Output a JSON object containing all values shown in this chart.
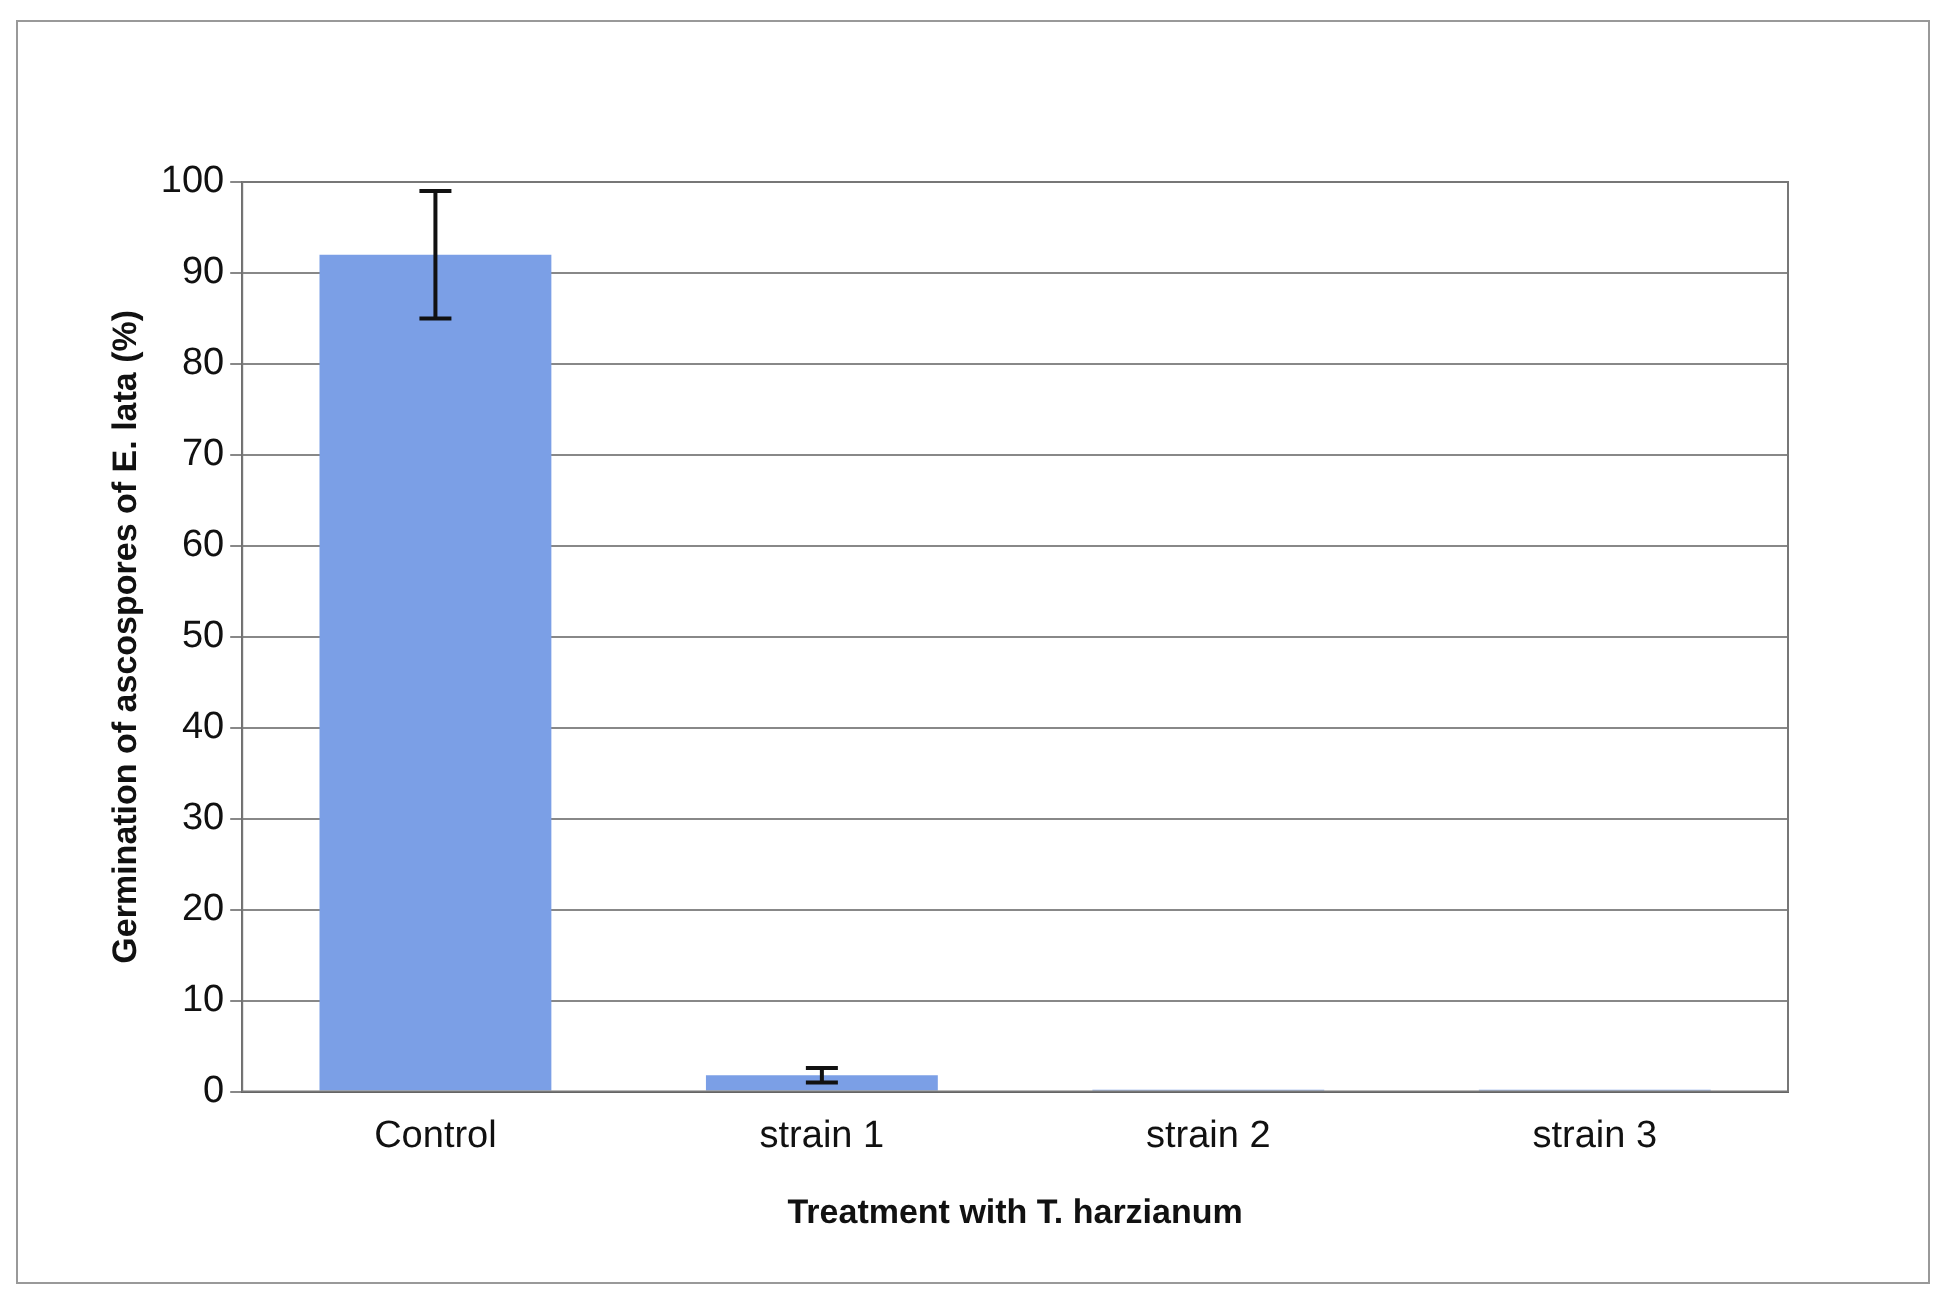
{
  "chart_data": {
    "type": "bar",
    "xlabel": "Treatment with T. harzianum",
    "ylabel": "Germination of ascospores of E. lata (%)",
    "categories": [
      "Control",
      "strain 1",
      "strain 2",
      "strain 3"
    ],
    "values": [
      92,
      1.8,
      0.2,
      0.2
    ],
    "errors": [
      7,
      0.8,
      null,
      null
    ],
    "color": "#7b9fe6",
    "ylim": [
      0,
      100
    ],
    "yticks": [
      0,
      10,
      20,
      30,
      40,
      50,
      60,
      70,
      80,
      90,
      100
    ],
    "grid": "y",
    "legend": false
  }
}
